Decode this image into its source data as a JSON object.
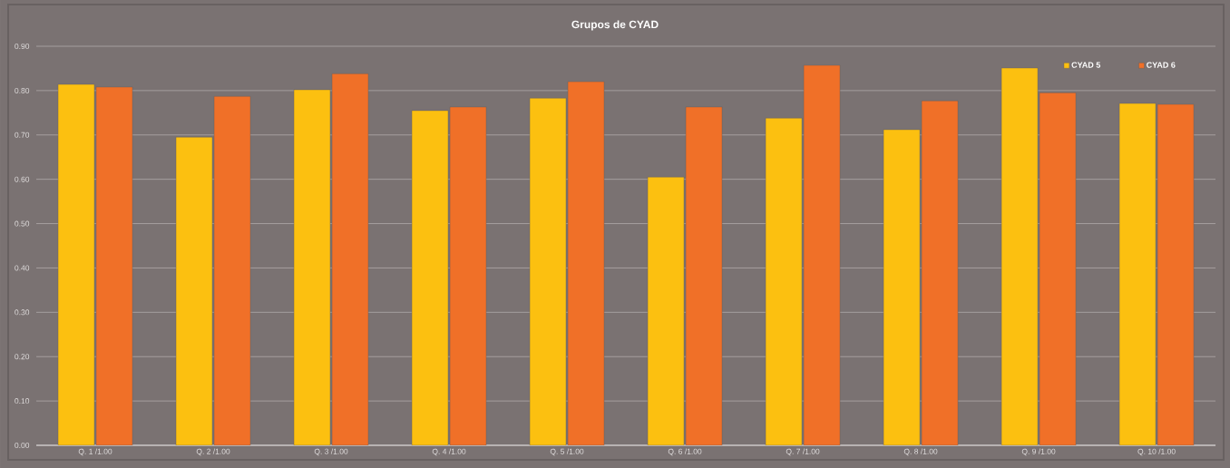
{
  "chart_data": {
    "type": "bar",
    "title": "Grupos de CYAD",
    "categories": [
      "Q. 1 /1.00",
      "Q. 2 /1.00",
      "Q. 3 /1.00",
      "Q. 4 /1.00",
      "Q. 5 /1.00",
      "Q. 6 /1.00",
      "Q. 7 /1.00",
      "Q. 8 /1.00",
      "Q. 9 /1.00",
      "Q. 10 /1.00"
    ],
    "series": [
      {
        "name": "CYAD 5",
        "color": "#fcc010",
        "values": [
          0.814,
          0.695,
          0.802,
          0.755,
          0.783,
          0.605,
          0.738,
          0.712,
          0.851,
          0.771
        ]
      },
      {
        "name": "CYAD 6",
        "color": "#f07028",
        "values": [
          0.808,
          0.787,
          0.838,
          0.763,
          0.82,
          0.763,
          0.857,
          0.777,
          0.795,
          0.769
        ]
      }
    ],
    "ylim": [
      0,
      0.9
    ],
    "yticks": [
      {
        "value": 0,
        "label": "0.00"
      },
      {
        "value": 0.1,
        "label": "0.10"
      },
      {
        "value": 0.2,
        "label": "0.20"
      },
      {
        "value": 0.3,
        "label": "0.30"
      },
      {
        "value": 0.4,
        "label": "0.40"
      },
      {
        "value": 0.5,
        "label": "0.50"
      },
      {
        "value": 0.6,
        "label": "0.60"
      },
      {
        "value": 0.7,
        "label": "0.70"
      },
      {
        "value": 0.8,
        "label": "0.80"
      },
      {
        "value": 0.9,
        "label": "0.90"
      }
    ],
    "grid": "y",
    "legend": "top right"
  }
}
